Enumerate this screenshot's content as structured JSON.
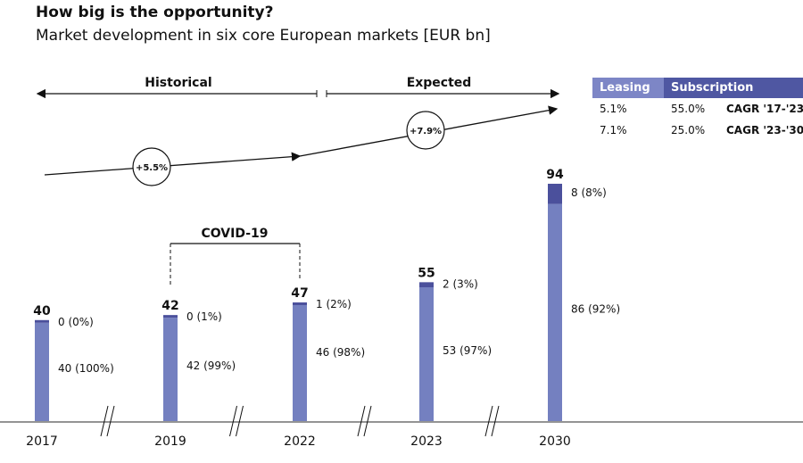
{
  "title": "How big is the opportunity?",
  "subtitle": "Market development in six core European markets [EUR bn]",
  "colors": {
    "leasing": "#7480c0",
    "subscription": "#4b509c"
  },
  "legend": {
    "headers": [
      "Leasing",
      "Subscription"
    ],
    "rows": [
      {
        "leasing": "5.1%",
        "subscription": "55.0%",
        "label": "CAGR '17-'23"
      },
      {
        "leasing": "7.1%",
        "subscription": "25.0%",
        "label": "CAGR '23-'30"
      }
    ]
  },
  "annotations": {
    "historical": "Historical",
    "expected": "Expected",
    "cagr1": "+5.5%",
    "cagr2": "+7.9%",
    "covid": "COVID-19"
  },
  "chart_data": {
    "type": "bar",
    "stacked": true,
    "categories": [
      "2017",
      "2019",
      "2022",
      "2023",
      "2030"
    ],
    "totals": [
      40,
      42,
      47,
      55,
      94
    ],
    "series": [
      {
        "name": "Leasing",
        "values": [
          40,
          42,
          46,
          53,
          86
        ],
        "labels": [
          "40 (100%)",
          "42 (99%)",
          "46 (98%)",
          "53 (97%)",
          "86 (92%)"
        ]
      },
      {
        "name": "Subscription",
        "values": [
          0,
          0,
          1,
          2,
          8
        ],
        "labels": [
          "0 (0%)",
          "0 (1%)",
          "1 (2%)",
          "2 (3%)",
          "8 (8%)"
        ]
      }
    ],
    "ylim": [
      0,
      100
    ]
  }
}
